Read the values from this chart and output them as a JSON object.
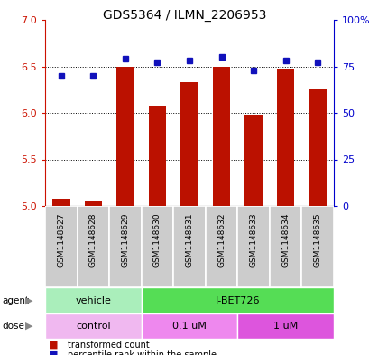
{
  "title": "GDS5364 / ILMN_2206953",
  "samples": [
    "GSM1148627",
    "GSM1148628",
    "GSM1148629",
    "GSM1148630",
    "GSM1148631",
    "GSM1148632",
    "GSM1148633",
    "GSM1148634",
    "GSM1148635"
  ],
  "transformed_count": [
    5.08,
    5.05,
    6.5,
    6.08,
    6.33,
    6.5,
    5.98,
    6.48,
    6.25
  ],
  "percentile_rank": [
    70,
    70,
    79,
    77,
    78,
    80,
    73,
    78,
    77
  ],
  "ylim": [
    5.0,
    7.0
  ],
  "yticks": [
    5.0,
    5.5,
    6.0,
    6.5,
    7.0
  ],
  "y2lim": [
    0,
    100
  ],
  "y2ticks": [
    0,
    25,
    50,
    75,
    100
  ],
  "y2ticklabels": [
    "0",
    "25",
    "50",
    "75",
    "100%"
  ],
  "bar_color": "#bb1100",
  "dot_color": "#1111bb",
  "agent_groups": [
    {
      "label": "vehicle",
      "start": 0,
      "end": 3,
      "color": "#aaeebb"
    },
    {
      "label": "I-BET726",
      "start": 3,
      "end": 9,
      "color": "#55dd55"
    }
  ],
  "dose_groups": [
    {
      "label": "control",
      "start": 0,
      "end": 3,
      "color": "#f0b8f0"
    },
    {
      "label": "0.1 uM",
      "start": 3,
      "end": 6,
      "color": "#ee88ee"
    },
    {
      "label": "1 uM",
      "start": 6,
      "end": 9,
      "color": "#dd55dd"
    }
  ],
  "sample_box_color": "#cccccc",
  "tick_color_left": "#cc1100",
  "tick_color_right": "#0000cc",
  "legend_bar_label": "transformed count",
  "legend_dot_label": "percentile rank within the sample"
}
